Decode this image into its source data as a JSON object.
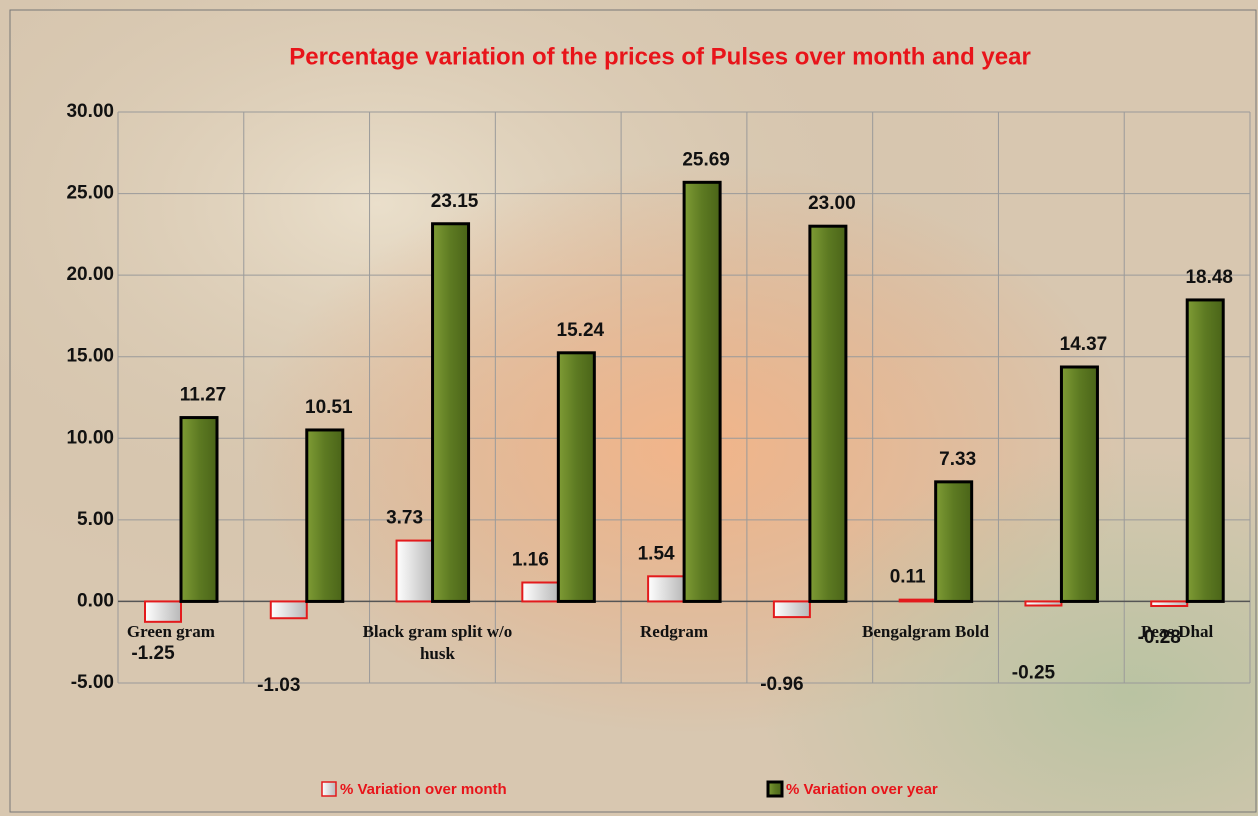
{
  "chart_data": {
    "type": "bar",
    "title": "Percentage variation of the prices of Pulses over month and year",
    "categories": [
      "Green gram",
      null,
      "Black gram  split w/o husk",
      null,
      "Redgram",
      null,
      "Bengalgram Bold",
      null,
      "Peas Dhal"
    ],
    "series": [
      {
        "name": "% Variation over month",
        "color": "#e8e8e8",
        "edge": "#e31a1c",
        "values": [
          -1.25,
          -1.03,
          3.73,
          1.16,
          1.54,
          -0.96,
          0.11,
          -0.25,
          -0.28
        ],
        "value_labels": [
          "-1.25",
          "-1.03",
          "3.73",
          "1.16",
          "1.54",
          "-0.96",
          "0.11",
          "-0.25",
          "-0.28"
        ]
      },
      {
        "name": "% Variation over year",
        "color": "#6b8a2a",
        "edge": "#000000",
        "values": [
          11.27,
          10.51,
          23.15,
          15.24,
          25.69,
          23.0,
          7.33,
          14.37,
          18.48
        ],
        "value_labels": [
          "11.27",
          "10.51",
          "23.15",
          "15.24",
          "25.69",
          "23.00",
          "7.33",
          "14.37",
          "18.48"
        ]
      }
    ],
    "ylim": [
      -5,
      30
    ],
    "yticks": [
      {
        "value": -5,
        "label": "-5.00"
      },
      {
        "value": 0,
        "label": "0.00"
      },
      {
        "value": 5,
        "label": "5.00"
      },
      {
        "value": 10,
        "label": "10.00"
      },
      {
        "value": 15,
        "label": "15.00"
      },
      {
        "value": 20,
        "label": "20.00"
      },
      {
        "value": 25,
        "label": "25.00"
      },
      {
        "value": 30,
        "label": "30.00"
      }
    ],
    "grid": true
  }
}
